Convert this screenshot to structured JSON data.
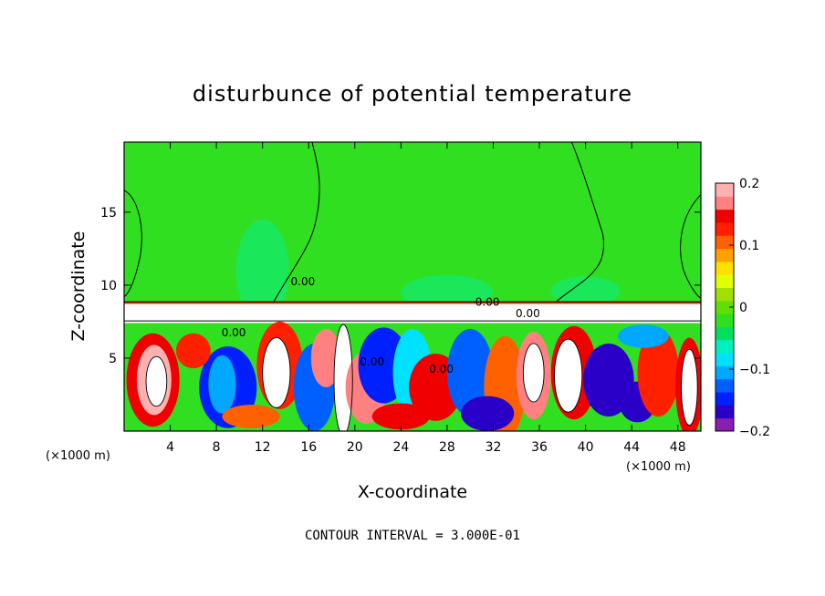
{
  "chart_data": {
    "type": "heatmap",
    "title": "disturbunce of potential temperature",
    "xlabel": "X-coordinate",
    "ylabel": "Z-coordinate",
    "x_unit": "(×1000 m)",
    "x_ticks": [
      4,
      8,
      12,
      16,
      20,
      24,
      28,
      32,
      36,
      40,
      44,
      48
    ],
    "y_ticks": [
      5,
      10,
      15
    ],
    "xlim": [
      0,
      50
    ],
    "ylim": [
      0,
      19.8
    ],
    "colorbar": {
      "min": -0.2,
      "max": 0.2,
      "tick_labels": [
        "0.2",
        "0.1",
        "0",
        "−0.1",
        "−0.2"
      ],
      "tick_values": [
        0.2,
        0.1,
        0,
        -0.1,
        -0.2
      ],
      "colors": [
        "#8a1fb0",
        "#2a00c8",
        "#0020ff",
        "#0060ff",
        "#00a8ff",
        "#00e0ff",
        "#00f0c0",
        "#00e060",
        "#30e020",
        "#60e000",
        "#a0e000",
        "#e0ff00",
        "#ffe000",
        "#ffa000",
        "#ff6000",
        "#ff2000",
        "#f00000",
        "#ff8080",
        "#ffb0b0"
      ]
    },
    "contour_interval": 0.3,
    "contour_labels": [
      "0.00",
      "0.00",
      "0.00",
      "0.00",
      "0.00",
      "0.00"
    ],
    "background_value": 0,
    "layers": [
      {
        "z_range": [
          8.8,
          19.8
        ],
        "description_value": 0.02
      },
      {
        "z_range": [
          7.5,
          8.8
        ],
        "description_value": 0
      },
      {
        "z_range": [
          0,
          7.5
        ],
        "description_value": 0
      }
    ]
  },
  "footer": {
    "contour_interval_text": "CONTOUR INTERVAL = 3.000E-01"
  }
}
